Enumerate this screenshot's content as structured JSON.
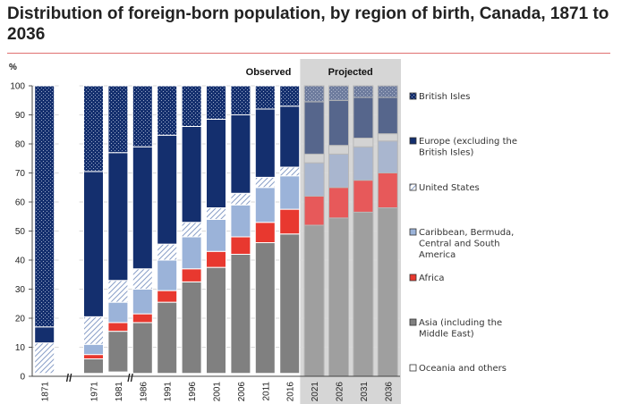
{
  "chart_data": {
    "type": "bar",
    "stacked": true,
    "title": "Distribution of foreign-born population, by region of birth, Canada, 1871 to 2036",
    "ylabel": "%",
    "xlabel": "",
    "ylim": [
      0,
      100
    ],
    "yticks": [
      0,
      10,
      20,
      30,
      40,
      50,
      60,
      70,
      80,
      90,
      100
    ],
    "legend_position": "right",
    "period_labels": {
      "observed": "Observed",
      "projected": "Projected"
    },
    "axis_break": "//",
    "categories": [
      "1871",
      "",
      "1971",
      "1981",
      "1986",
      "1991",
      "1996",
      "2001",
      "2006",
      "2011",
      "2016",
      "2021",
      "2026",
      "2031",
      "2036"
    ],
    "projected": [
      false,
      false,
      false,
      false,
      false,
      false,
      false,
      false,
      false,
      false,
      false,
      true,
      true,
      true,
      true
    ],
    "series": [
      {
        "name": "Oceania and others",
        "legend": "Oceania and others",
        "color": "#ffffff",
        "values": [
          1,
          0,
          1,
          1.5,
          1,
          1,
          1,
          1,
          1,
          1,
          1,
          0,
          0,
          0,
          0
        ]
      },
      {
        "name": "Asia (including the Middle East)",
        "legend": "Asia (including the Middle East)",
        "color": "#808080",
        "values": [
          0,
          0,
          5,
          14,
          17.5,
          24.5,
          31.5,
          36.5,
          41,
          45,
          48,
          52,
          54.5,
          56.5,
          58
        ]
      },
      {
        "name": "Africa",
        "legend": "Africa",
        "color": "#e8382f",
        "values": [
          0,
          0,
          1.5,
          3,
          3,
          4,
          4.5,
          5.5,
          6,
          7,
          8.5,
          10,
          10.5,
          11,
          12
        ]
      },
      {
        "name": "Caribbean, Bermuda, Central and South America",
        "legend": "Caribbean, Bermuda, Central and South America",
        "color": "#9bb3d9",
        "values": [
          0,
          0,
          3.5,
          7,
          8.5,
          10.5,
          11,
          11,
          11,
          12,
          11.5,
          11.5,
          11.5,
          11.5,
          11
        ]
      },
      {
        "name": "United States",
        "legend": "United States",
        "color": "#ffffff",
        "values": [
          10.5,
          0,
          9.5,
          7.5,
          7,
          5.5,
          5,
          4,
          4,
          3.5,
          3,
          3,
          3,
          3,
          2.5
        ]
      },
      {
        "name": "Europe (excluding the British Isles)",
        "legend": "Europe (excluding the British Isles)",
        "color": "#142f6e",
        "values": [
          5.5,
          0,
          50,
          44,
          42,
          37.5,
          33,
          30.5,
          27,
          23.5,
          21,
          18,
          15.5,
          14,
          12.5
        ]
      },
      {
        "name": "British Isles",
        "legend": "British Isles",
        "color": "#142f6e",
        "values": [
          83,
          0,
          29.5,
          23,
          21,
          17,
          14,
          11.5,
          10,
          8,
          7,
          5.5,
          5,
          4,
          4
        ]
      }
    ]
  }
}
